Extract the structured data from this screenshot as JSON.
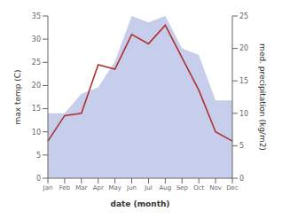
{
  "chart_data": {
    "type": "line",
    "categories": [
      "Jan",
      "Feb",
      "Mar",
      "Apr",
      "May",
      "Jun",
      "Jul",
      "Aug",
      "Sep",
      "Oct",
      "Nov",
      "Dec"
    ],
    "series": [
      {
        "type": "area",
        "axis": "y2",
        "color": "#bcc5e8",
        "values": [
          10,
          10,
          13,
          14,
          18,
          25,
          24,
          25,
          20,
          19,
          12,
          12
        ]
      },
      {
        "type": "line",
        "axis": "y",
        "color": "#b03030",
        "values": [
          8,
          13.5,
          14,
          24.5,
          23.5,
          31,
          29,
          33,
          26,
          19,
          10,
          8
        ]
      }
    ],
    "xlabel": "date (month)",
    "ylabel": "max temp (C)",
    "y2label": "med. precipitation (kg/m2)",
    "ylim": [
      0,
      35
    ],
    "yticks": [
      0,
      5,
      10,
      15,
      20,
      25,
      30,
      35
    ],
    "y2lim": [
      0,
      25
    ],
    "y2ticks": [
      0,
      5,
      10,
      15,
      20,
      25
    ],
    "grid": false
  }
}
